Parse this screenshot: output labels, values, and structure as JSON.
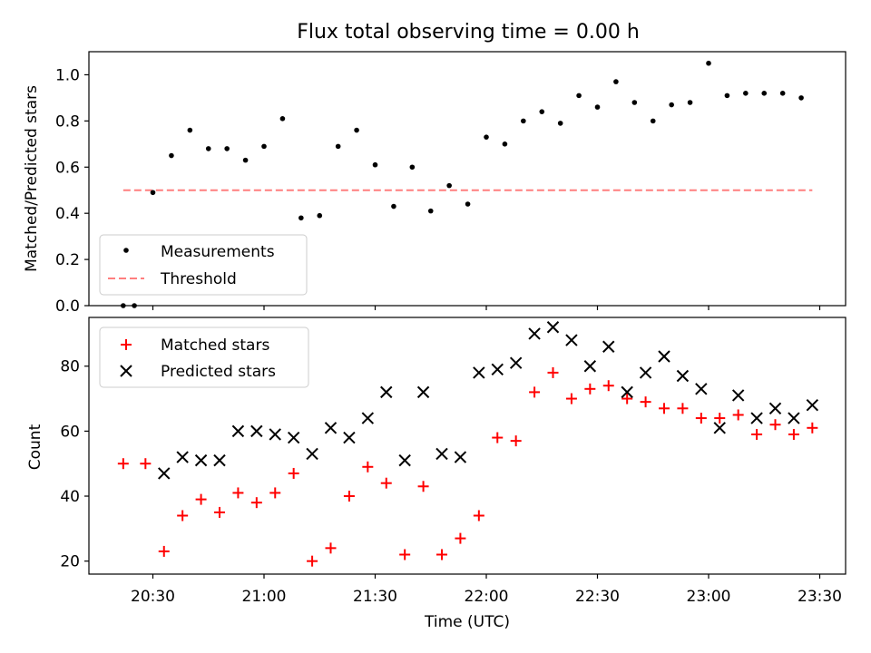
{
  "chart_data": [
    {
      "type": "scatter",
      "title": "Flux total observing time = 0.00 h",
      "ylabel": "Matched/Predicted stars",
      "xlabel": "",
      "ylim": [
        0.0,
        1.1
      ],
      "yticks": [
        "0.0",
        "0.2",
        "0.4",
        "0.6",
        "0.8",
        "1.0"
      ],
      "grid": false,
      "legend": "lower-left",
      "series": [
        {
          "name": "Measurements",
          "color": "#000000",
          "marker": "dot",
          "x": [
            "20:25",
            "20:30",
            "20:35",
            "20:40",
            "20:45",
            "20:50",
            "20:55",
            "21:00",
            "21:05",
            "21:10",
            "21:15",
            "21:20",
            "21:25",
            "21:30",
            "21:35",
            "21:40",
            "21:45",
            "21:50",
            "21:55",
            "22:00",
            "22:05",
            "22:10",
            "22:15",
            "22:20",
            "22:25",
            "22:30",
            "22:35",
            "22:40",
            "22:45",
            "22:50",
            "22:55",
            "23:00",
            "23:05",
            "23:10",
            "23:15",
            "23:20",
            "23:25"
          ],
          "y": [
            0.0,
            0.49,
            0.65,
            0.76,
            0.68,
            0.68,
            0.63,
            0.69,
            0.81,
            0.38,
            0.39,
            0.69,
            0.76,
            0.61,
            0.43,
            0.6,
            0.41,
            0.52,
            0.44,
            0.73,
            0.7,
            0.8,
            0.84,
            0.79,
            0.91,
            0.86,
            0.97,
            0.88,
            0.8,
            0.87,
            0.88,
            1.05,
            0.91,
            0.92,
            0.92,
            0.92,
            0.9
          ]
        },
        {
          "name": "Threshold",
          "color": "#ff7f7f",
          "style": "dashed",
          "x": [
            "20:22",
            "23:28"
          ],
          "y": [
            0.5,
            0.5
          ]
        }
      ],
      "extra_points": {
        "x": [
          "20:22"
        ],
        "y": [
          0.0
        ]
      }
    },
    {
      "type": "scatter",
      "title": "",
      "ylabel": "Count",
      "xlabel": "Time (UTC)",
      "ylim": [
        16,
        95
      ],
      "yticks": [
        "20",
        "40",
        "60",
        "80"
      ],
      "xticks": [
        "20:30",
        "21:00",
        "21:30",
        "22:00",
        "22:30",
        "23:00",
        "23:30"
      ],
      "grid": false,
      "legend": "top-left",
      "series": [
        {
          "name": "Matched stars",
          "color": "#ff0000",
          "marker": "plus",
          "x": [
            "20:22",
            "20:28",
            "20:33",
            "20:38",
            "20:43",
            "20:48",
            "20:53",
            "20:58",
            "21:03",
            "21:08",
            "21:13",
            "21:18",
            "21:23",
            "21:28",
            "21:33",
            "21:38",
            "21:43",
            "21:48",
            "21:53",
            "21:58",
            "22:03",
            "22:08",
            "22:13",
            "22:18",
            "22:23",
            "22:28",
            "22:33",
            "22:38",
            "22:43",
            "22:48",
            "22:53",
            "22:58",
            "23:03",
            "23:08",
            "23:13",
            "23:18",
            "23:23",
            "23:28"
          ],
          "y": [
            50,
            50,
            23,
            34,
            39,
            35,
            41,
            38,
            41,
            47,
            20,
            24,
            40,
            49,
            44,
            22,
            43,
            22,
            27,
            34,
            58,
            57,
            72,
            78,
            70,
            73,
            74,
            70,
            69,
            67,
            67,
            64,
            64,
            65,
            59,
            62,
            59,
            61
          ]
        },
        {
          "name": "Predicted stars",
          "color": "#000000",
          "marker": "x",
          "x": [
            "20:33",
            "20:38",
            "20:43",
            "20:48",
            "20:53",
            "20:58",
            "21:03",
            "21:08",
            "21:13",
            "21:18",
            "21:23",
            "21:28",
            "21:33",
            "21:38",
            "21:43",
            "21:48",
            "21:53",
            "21:58",
            "22:03",
            "22:08",
            "22:13",
            "22:18",
            "22:23",
            "22:28",
            "22:33",
            "22:38",
            "22:43",
            "22:48",
            "22:53",
            "22:58",
            "23:03",
            "23:08",
            "23:13",
            "23:18",
            "23:23",
            "23:28"
          ],
          "y": [
            47,
            52,
            51,
            51,
            60,
            60,
            59,
            58,
            53,
            61,
            58,
            64,
            72,
            51,
            72,
            53,
            52,
            78,
            79,
            81,
            90,
            92,
            88,
            80,
            86,
            72,
            78,
            83,
            77,
            73,
            61,
            71,
            64,
            67,
            64,
            68
          ]
        }
      ]
    }
  ]
}
